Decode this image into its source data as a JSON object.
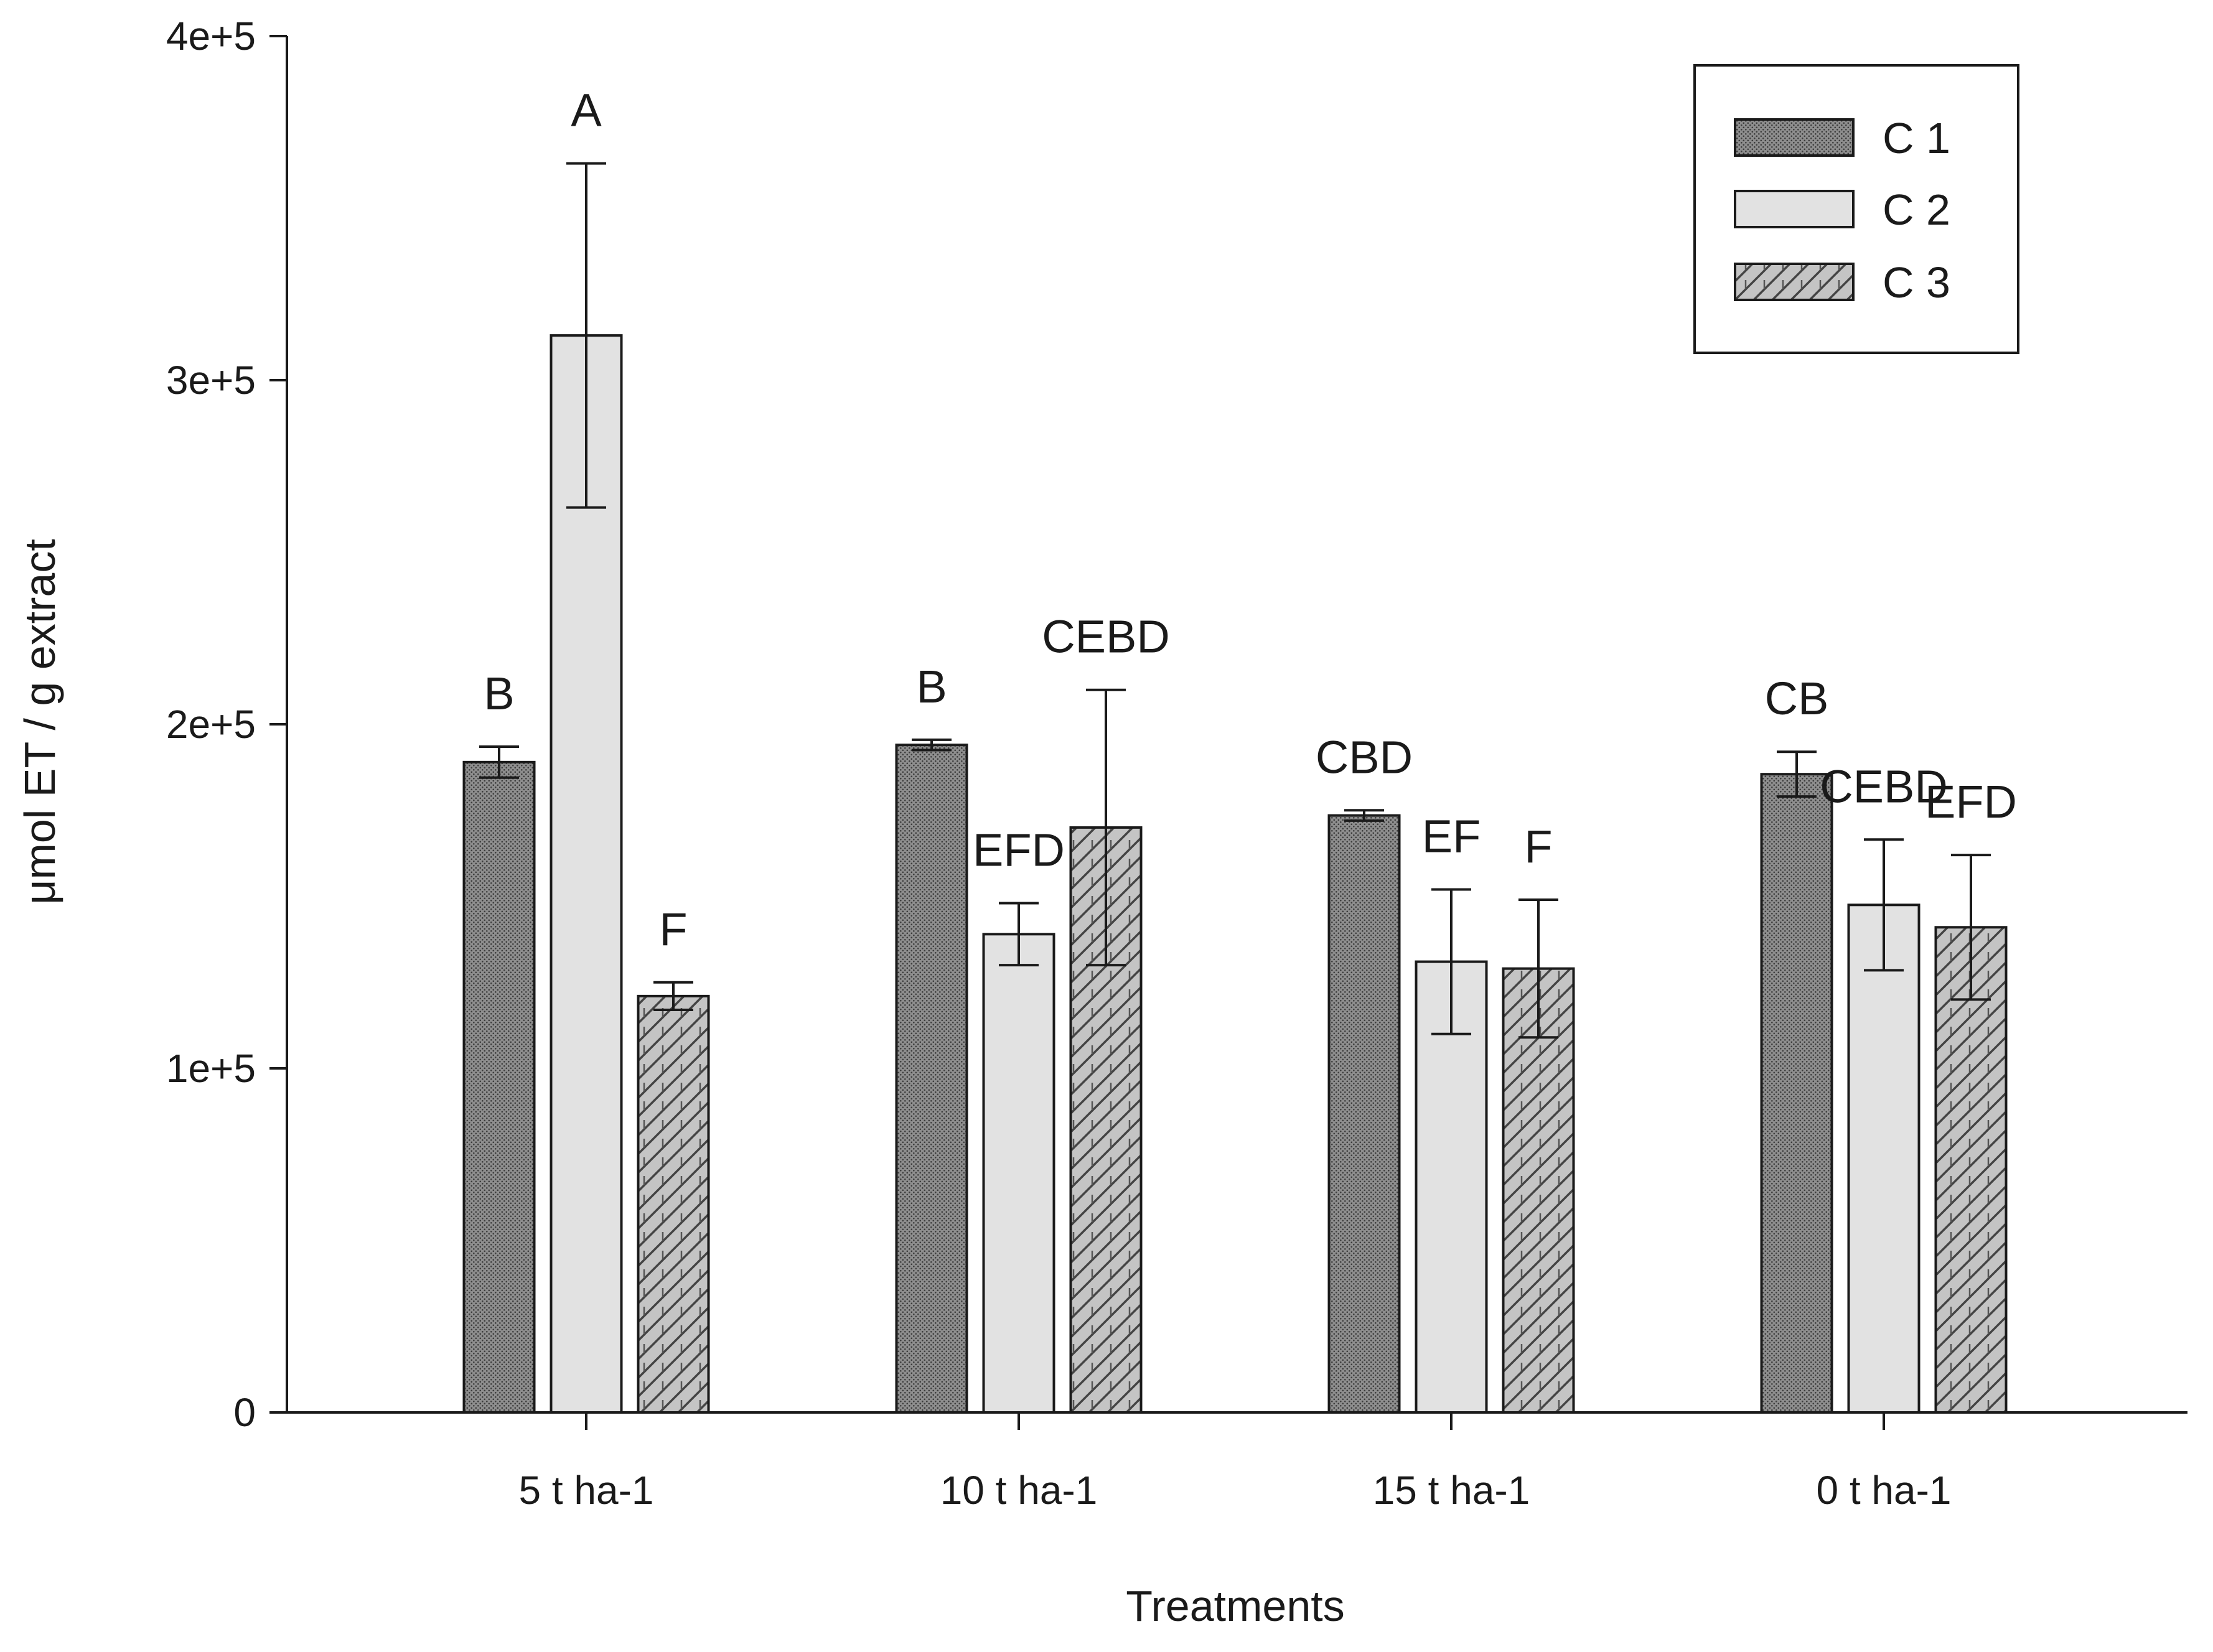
{
  "chart_data": {
    "type": "bar",
    "title": "",
    "xlabel": "Treatments",
    "ylabel": "μmol ET / g extract",
    "ylim": [
      0,
      400000
    ],
    "yticks": [
      0,
      100000,
      200000,
      300000,
      400000
    ],
    "ytick_labels": [
      "0",
      "1e+5",
      "2e+5",
      "3e+5",
      "4e+5"
    ],
    "categories": [
      "5 t ha-1",
      "10 t ha-1",
      "15 t ha-1",
      "0 t ha-1"
    ],
    "legend_position": "top-right",
    "grid": false,
    "series": [
      {
        "name": "C 1",
        "pattern": "dots",
        "values": [
          189000,
          194000,
          173500,
          185500
        ],
        "errors": [
          4500,
          1500,
          1500,
          6500
        ],
        "labels": [
          "B",
          "B",
          "CBD",
          "CB"
        ]
      },
      {
        "name": "C 2",
        "pattern": "plain",
        "values": [
          313000,
          139000,
          131000,
          147500
        ],
        "errors": [
          50000,
          9000,
          21000,
          19000
        ],
        "labels": [
          "A",
          "EFD",
          "EF",
          "CEBD"
        ]
      },
      {
        "name": "C 3",
        "pattern": "hatch",
        "values": [
          121000,
          170000,
          129000,
          141000
        ],
        "errors": [
          4000,
          40000,
          20000,
          21000
        ],
        "labels": [
          "F",
          "CEBD",
          "F",
          "EFD"
        ]
      }
    ]
  }
}
